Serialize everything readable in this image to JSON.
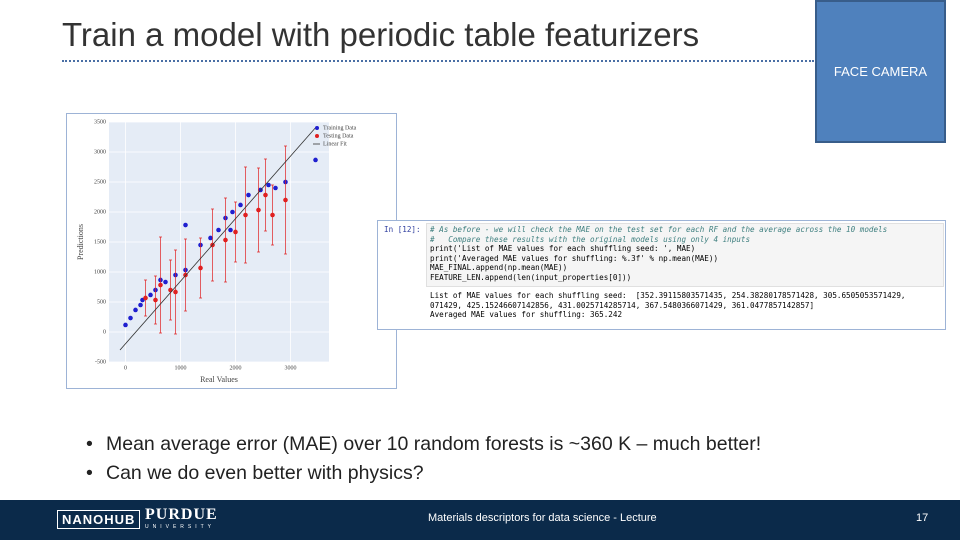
{
  "header": {
    "title": "Train a model with periodic table featurizers",
    "camera": "FACE CAMERA"
  },
  "chart_data": {
    "type": "scatter",
    "xlabel": "Real Values",
    "ylabel": "Predictions",
    "xlim": [
      -300,
      3700
    ],
    "ylim": [
      -500,
      3500
    ],
    "xticks": [
      0,
      1000,
      2000,
      3000
    ],
    "yticks": [
      -500,
      0,
      500,
      1000,
      1500,
      2000,
      2500,
      3000,
      3500
    ],
    "grid": true,
    "legend": "upper right",
    "series": [
      {
        "name": "Training Data",
        "color": "#1f1fcf",
        "x": [
          0,
          91,
          182,
          309,
          455,
          545,
          727,
          909,
          1091,
          1364,
          1545,
          1691,
          1818,
          1945,
          2091,
          2236,
          2455,
          2600,
          2727,
          2909,
          3455,
          1091,
          273,
          636,
          1909
        ],
        "values": [
          117,
          233,
          367,
          533,
          617,
          700,
          833,
          950,
          1033,
          1450,
          1567,
          1700,
          1900,
          2000,
          2117,
          2283,
          2367,
          2450,
          2400,
          2500,
          2867,
          1783,
          450,
          867,
          1700
        ]
      },
      {
        "name": "Testing Data",
        "color": "#e02020",
        "x": [
          364,
          545,
          818,
          1091,
          1364,
          1582,
          1818,
          2000,
          2182,
          2418,
          2545,
          2909,
          2673,
          636,
          909
        ],
        "values": [
          567,
          533,
          700,
          950,
          1067,
          1450,
          1533,
          1667,
          1950,
          2033,
          2283,
          2200,
          1950,
          783,
          667
        ],
        "errors": [
          300,
          400,
          500,
          600,
          500,
          600,
          700,
          500,
          800,
          700,
          600,
          900,
          500,
          800,
          700
        ]
      },
      {
        "name": "Linear Fit",
        "type": "line",
        "color": "#333333",
        "x": [
          -100,
          3450
        ],
        "values": [
          -300,
          3400
        ]
      }
    ]
  },
  "code": {
    "prompt": "In [12]:",
    "lines": [
      "# As before - we will check the MAE on the test set for each RF and the average across the 10 models",
      "#   Compare these results with the original models using only 4 inputs",
      "print('List of MAE values for each shuffling seed: ', MAE)",
      "print('Averaged MAE values for shuffling: %.3f' % np.mean(MAE))",
      "MAE_FINAL.append(np.mean(MAE))",
      "FEATURE_LEN.append(len(input_properties[0]))"
    ],
    "output": [
      "List of MAE values for each shuffling seed:  [352.39115803571435, 254.38280178571428, 305.6505053571429,",
      "071429, 425.15246607142856, 431.0025714285714, 367.5480366071429, 361.0477857142857]",
      "Averaged MAE values for shuffling: 365.242"
    ]
  },
  "bullets": [
    "Mean average error (MAE) over 10 random forests is ~360 K – much better!",
    "Can we do even better with physics?"
  ],
  "footer": {
    "logo": "NANOHUB",
    "university": "PURDUE",
    "university_sub": "UNIVERSITY",
    "text": "Materials descriptors for data science - Lecture",
    "page": "17"
  }
}
